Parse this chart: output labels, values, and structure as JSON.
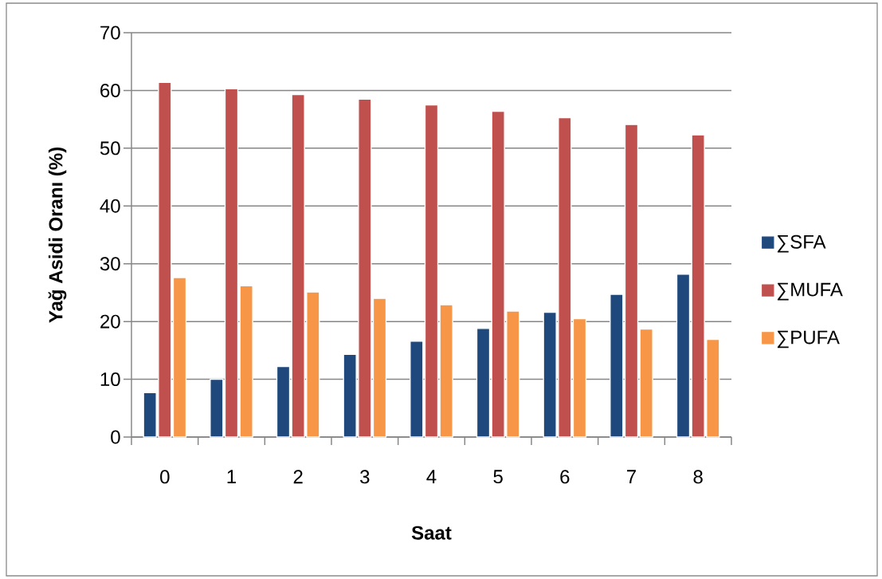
{
  "chart_data": {
    "type": "bar",
    "xlabel": "Saat",
    "ylabel": "Yağ Asidi Oranı (%)",
    "categories": [
      "0",
      "1",
      "2",
      "3",
      "4",
      "5",
      "6",
      "7",
      "8"
    ],
    "series": [
      {
        "name": "∑SFA",
        "color": "#1f497d",
        "values": [
          7.7,
          10.0,
          12.2,
          14.3,
          16.6,
          18.8,
          21.6,
          24.7,
          28.2
        ]
      },
      {
        "name": "∑MUFA",
        "color": "#c0504d",
        "values": [
          61.4,
          60.3,
          59.3,
          58.5,
          57.5,
          56.4,
          55.3,
          54.1,
          52.3
        ]
      },
      {
        "name": "∑PUFA",
        "color": "#f79646",
        "values": [
          27.6,
          26.2,
          25.1,
          24.0,
          22.9,
          21.8,
          20.5,
          18.7,
          16.9
        ]
      }
    ],
    "ylim": [
      0,
      70
    ],
    "yticks": [
      0,
      10,
      20,
      30,
      40,
      50,
      60,
      70
    ],
    "grid": "y",
    "legend": "right"
  }
}
